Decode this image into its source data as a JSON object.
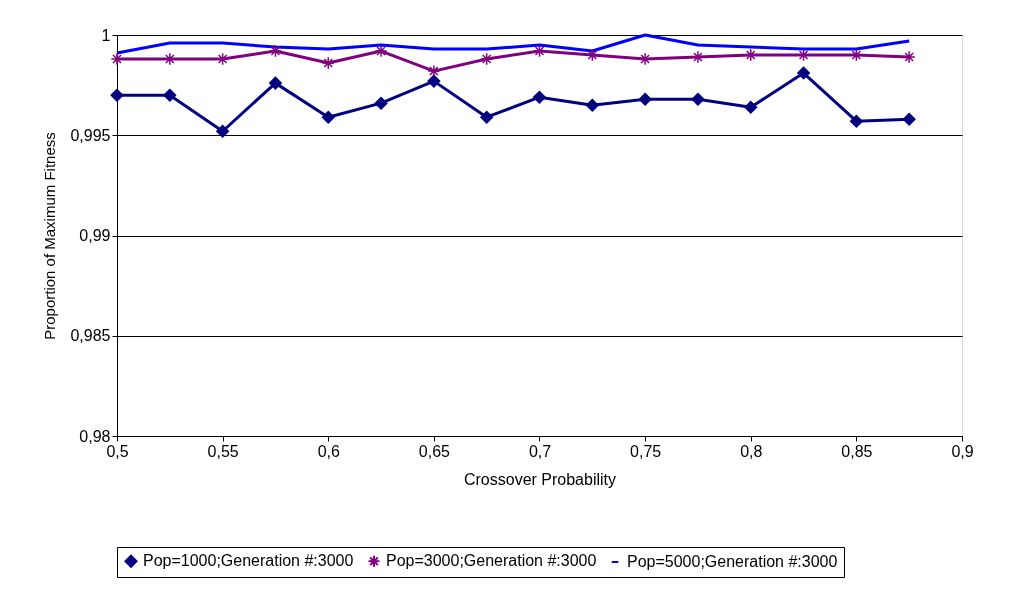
{
  "chart_data": {
    "type": "line",
    "xlabel": "Crossover Probability",
    "ylabel": "Proportion of Maximum Fitness",
    "x": [
      0.5,
      0.525,
      0.55,
      0.575,
      0.6,
      0.625,
      0.65,
      0.675,
      0.7,
      0.725,
      0.75,
      0.775,
      0.8,
      0.825,
      0.85,
      0.875
    ],
    "series": [
      {
        "name": "Pop=1000;Generation #:3000",
        "color": "#000080",
        "marker": "diamond",
        "values": [
          0.997,
          0.997,
          0.9952,
          0.9976,
          0.9959,
          0.9966,
          0.9977,
          0.9959,
          0.9969,
          0.9965,
          0.9968,
          0.9968,
          0.9964,
          0.9981,
          0.9957,
          0.9958
        ]
      },
      {
        "name": "Pop=3000;Generation #:3000",
        "color": "#800080",
        "marker": "cross",
        "values": [
          0.9988,
          0.9988,
          0.9988,
          0.9992,
          0.9986,
          0.9992,
          0.9982,
          0.9988,
          0.9992,
          0.999,
          0.9988,
          0.9989,
          0.999,
          0.999,
          0.999,
          0.9989
        ]
      },
      {
        "name": "Pop=5000;Generation #:3000",
        "color": "#0000ff",
        "marker": "none",
        "values": [
          0.9991,
          0.9996,
          0.9996,
          0.9994,
          0.9993,
          0.9995,
          0.9993,
          0.9993,
          0.9995,
          0.9992,
          1.0,
          0.9995,
          0.9994,
          0.9993,
          0.9993,
          0.9997
        ]
      }
    ],
    "xlim": [
      0.5,
      0.9
    ],
    "xticks": [
      {
        "value": 0.5,
        "label": "0,5"
      },
      {
        "value": 0.55,
        "label": "0,55"
      },
      {
        "value": 0.6,
        "label": "0,6"
      },
      {
        "value": 0.65,
        "label": "0,65"
      },
      {
        "value": 0.7,
        "label": "0,7"
      },
      {
        "value": 0.75,
        "label": "0,75"
      },
      {
        "value": 0.8,
        "label": "0,8"
      },
      {
        "value": 0.85,
        "label": "0,85"
      },
      {
        "value": 0.9,
        "label": "0,9"
      }
    ],
    "ylim": [
      0.98,
      1
    ],
    "yticks": [
      {
        "value": 0.98,
        "label": "0,98"
      },
      {
        "value": 0.985,
        "label": "0,985"
      },
      {
        "value": 0.99,
        "label": "0,99"
      },
      {
        "value": 0.995,
        "label": "0,995"
      },
      {
        "value": 1,
        "label": "1"
      }
    ],
    "grid": "y",
    "legend": "bottom",
    "line_style": "solid"
  }
}
